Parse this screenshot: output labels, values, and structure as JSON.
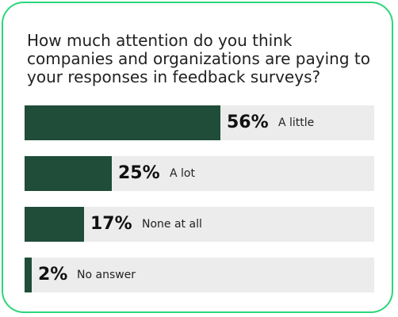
{
  "card": {
    "border_color": "#2bd67b"
  },
  "chart_data": {
    "type": "bar",
    "orientation": "horizontal",
    "title": "How much attention do you think companies and organizations are paying to your responses in feedback surveys?",
    "categories": [
      "A little",
      "A lot",
      "None at all",
      "No answer"
    ],
    "values": [
      56,
      25,
      17,
      2
    ],
    "value_labels": [
      "56%",
      "25%",
      "17%",
      "2%"
    ],
    "unit": "%",
    "xlim": [
      0,
      100
    ],
    "grid": false,
    "legend": "none",
    "colors": {
      "fill": "#1f4d39",
      "track": "#ececec"
    }
  }
}
